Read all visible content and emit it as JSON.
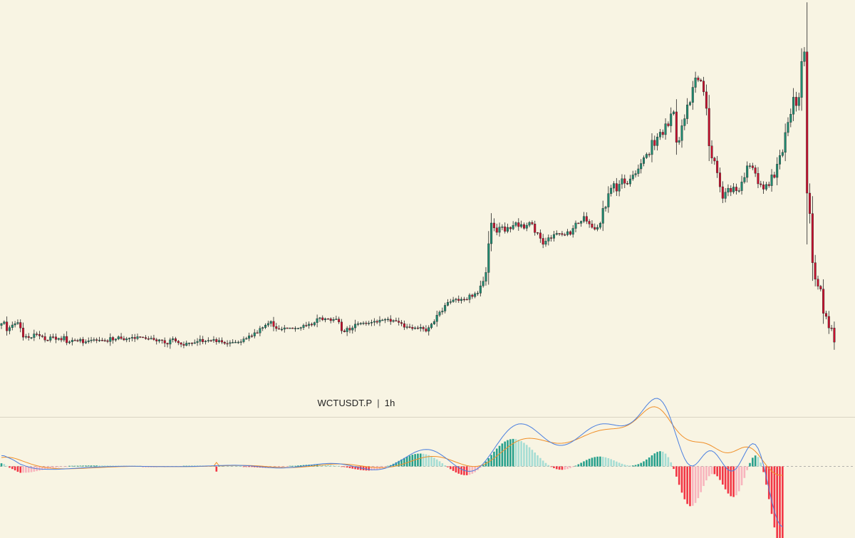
{
  "symbol": "WCTUSDT.P",
  "separator": "|",
  "timeframe": "1h",
  "colors": {
    "background": "#f8f4e3",
    "up": "#1f8a70",
    "down": "#c8102e",
    "wick": "#222222",
    "macd_line": "#4a7fe0",
    "signal_line": "#f0902a",
    "hist_up_strong": "#27a08c",
    "hist_up_weak": "#a6ddd4",
    "hist_down_strong": "#f23645",
    "hist_down_weak": "#f8b4bd",
    "divider": "#d9d4c3",
    "zero_line": "#9a9a9a"
  },
  "chart_data": {
    "type": "candlestick",
    "timeframe": "1h",
    "grid": false,
    "closes": [
      0.4016,
      0.4034,
      0.3938,
      0.3972,
      0.4001,
      0.4015,
      0.4028,
      0.3968,
      0.3869,
      0.3877,
      0.3864,
      0.3865,
      0.3904,
      0.3899,
      0.3883,
      0.3875,
      0.3837,
      0.3835,
      0.3873,
      0.3872,
      0.3844,
      0.3856,
      0.3838,
      0.3877,
      0.3808,
      0.3818,
      0.3836,
      0.3834,
      0.3827,
      0.3846,
      0.3806,
      0.3819,
      0.383,
      0.3838,
      0.3842,
      0.3832,
      0.3837,
      0.3834,
      0.3831,
      0.3821,
      0.3866,
      0.3837,
      0.3848,
      0.3873,
      0.3854,
      0.3839,
      0.3851,
      0.3858,
      0.3867,
      0.3853,
      0.3874,
      0.387,
      0.3865,
      0.3853,
      0.3852,
      0.3858,
      0.3842,
      0.3826,
      0.384,
      0.3833,
      0.3804,
      0.3793,
      0.384,
      0.3853,
      0.3825,
      0.3808,
      0.3792,
      0.3779,
      0.3805,
      0.3806,
      0.38,
      0.3809,
      0.3823,
      0.3846,
      0.3818,
      0.3826,
      0.3834,
      0.3832,
      0.3844,
      0.3818,
      0.3834,
      0.3815,
      0.3801,
      0.38,
      0.381,
      0.3813,
      0.3815,
      0.3815,
      0.3819,
      0.3849,
      0.3855,
      0.3884,
      0.3881,
      0.3917,
      0.3915,
      0.3964,
      0.3973,
      0.3999,
      0.4017,
      0.404,
      0.3984,
      0.3962,
      0.3955,
      0.3955,
      0.397,
      0.3965,
      0.3969,
      0.3962,
      0.3965,
      0.3965,
      0.3972,
      0.3998,
      0.3994,
      0.401,
      0.4001,
      0.4026,
      0.407,
      0.4079,
      0.4056,
      0.4069,
      0.4068,
      0.4048,
      0.4061,
      0.4065,
      0.4033,
      0.3938,
      0.3927,
      0.3966,
      0.3946,
      0.397,
      0.401,
      0.4014,
      0.4018,
      0.4023,
      0.4019,
      0.4022,
      0.403,
      0.4041,
      0.4031,
      0.4054,
      0.4055,
      0.4062,
      0.4064,
      0.4039,
      0.405,
      0.4043,
      0.4028,
      0.4016,
      0.3976,
      0.3981,
      0.3976,
      0.3961,
      0.397,
      0.3963,
      0.3976,
      0.3959,
      0.3933,
      0.3973,
      0.4011,
      0.4038,
      0.4107,
      0.4141,
      0.4152,
      0.4214,
      0.4247,
      0.4253,
      0.4272,
      0.4281,
      0.4265,
      0.428,
      0.4279,
      0.4277,
      0.4326,
      0.4309,
      0.4341,
      0.4346,
      0.4425,
      0.4475,
      0.457,
      0.4882,
      0.5106,
      0.5053,
      0.5005,
      0.5061,
      0.5065,
      0.5016,
      0.5059,
      0.5043,
      0.508,
      0.511,
      0.5067,
      0.509,
      0.5049,
      0.5082,
      0.5112,
      0.5096,
      0.5003,
      0.4999,
      0.494,
      0.4875,
      0.491,
      0.4947,
      0.4941,
      0.4982,
      0.4994,
      0.4993,
      0.4981,
      0.4979,
      0.5013,
      0.4983,
      0.5048,
      0.5106,
      0.5103,
      0.5125,
      0.5177,
      0.5125,
      0.5096,
      0.5059,
      0.5039,
      0.5059,
      0.5103,
      0.5265,
      0.5279,
      0.5425,
      0.5484,
      0.5534,
      0.5452,
      0.5527,
      0.5586,
      0.5536,
      0.553,
      0.5584,
      0.5627,
      0.5642,
      0.5693,
      0.5751,
      0.5814,
      0.5851,
      0.5848,
      0.6003,
      0.5945,
      0.6039,
      0.6091,
      0.6064,
      0.6182,
      0.616,
      0.6289,
      0.6311,
      0.5981,
      0.6,
      0.6161,
      0.6237,
      0.6387,
      0.6413,
      0.6577,
      0.668,
      0.6655,
      0.6644,
      0.6528,
      0.6349,
      0.5942,
      0.581,
      0.5778,
      0.565,
      0.5499,
      0.5373,
      0.544,
      0.5483,
      0.5443,
      0.5496,
      0.5455,
      0.5457,
      0.5551,
      0.56,
      0.5726,
      0.5726,
      0.5705,
      0.5645,
      0.5531,
      0.5521,
      0.5473,
      0.5524,
      0.5511,
      0.5628,
      0.56,
      0.5744,
      0.5838,
      0.5872,
      0.6087,
      0.6198,
      0.6286,
      0.647,
      0.6379,
      0.6468,
      0.6857,
      0.6961,
      0.543,
      0.5208,
      0.4676,
      0.4497,
      0.4421,
      0.4389,
      0.4127,
      0.4094,
      0.3969,
      0.3968,
      0.3815
    ],
    "macd": [
      0.01207,
      0.01195,
      0.01057,
      0.00917,
      0.00781,
      0.00617,
      0.00424,
      0.00241,
      0.00136,
      0.00026,
      -0.00069,
      -0.00148,
      -0.00208,
      -0.00253,
      -0.00287,
      -0.0031,
      -0.0032,
      -0.00326,
      -0.00331,
      -0.00332,
      -0.00327,
      -0.00319,
      -0.00305,
      -0.0029,
      -0.00271,
      -0.00253,
      -0.00235,
      -0.00217,
      -0.00199,
      -0.00181,
      -0.00163,
      -0.00145,
      -0.00127,
      -0.00111,
      -0.00095,
      -0.00079,
      -0.00065,
      -0.00051,
      -0.00038,
      -0.00026,
      -0.00015,
      -6e-05,
      2e-05,
      8e-05,
      0.00012,
      0.00015,
      0.00016,
      0.00016,
      0.00015,
      0.00013,
      0.0001,
      7e-05,
      3e-05,
      -1e-05,
      -5e-05,
      -9e-05,
      -0.00013,
      -0.00017,
      -0.00019,
      -0.00021,
      -0.00023,
      -0.00025,
      -0.00026,
      -0.00026,
      -0.00025,
      -0.00024,
      -0.00022,
      -0.0002,
      -0.00016,
      -0.00012,
      -7e-05,
      -1e-05,
      7e-05,
      0.00016,
      0.00026,
      0.00037,
      0.00048,
      0.0006,
      0.00073,
      0.00085,
      0.00096,
      0.00106,
      0.00114,
      0.0012,
      0.00124,
      0.00126,
      0.00125,
      0.00121,
      0.00114,
      0.00104,
      0.00089,
      0.00071,
      0.00048,
      0.00021,
      -8e-05,
      -0.00039,
      -0.0007,
      -0.00099,
      -0.00125,
      -0.00146,
      -0.00163,
      -0.00173,
      -0.00177,
      -0.00175,
      -0.00166,
      -0.00151,
      -0.00131,
      -0.00106,
      -0.00077,
      -0.00044,
      -8e-05,
      0.0003,
      0.0007,
      0.00111,
      0.00153,
      0.00193,
      0.0023,
      0.00264,
      0.00293,
      0.00315,
      0.0033,
      0.00336,
      0.00332,
      0.00318,
      0.00293,
      0.00258,
      0.00212,
      0.00157,
      0.00094,
      0.00026,
      -0.00046,
      -0.00118,
      -0.00187,
      -0.00251,
      -0.00306,
      -0.00349,
      -0.00377,
      -0.00387,
      -0.00377,
      -0.00345,
      -0.00289,
      -0.00209,
      -0.00105,
      0.00022,
      0.0017,
      0.00336,
      0.00516,
      0.00706,
      0.00899,
      0.01091,
      0.01276,
      0.01447,
      0.01598,
      0.01724,
      0.0182,
      0.01881,
      0.01904,
      0.01886,
      0.01828,
      0.01729,
      0.01592,
      0.0142,
      0.0122,
      0.00997,
      0.00761,
      0.00519,
      0.00281,
      0.00057,
      -0.00145,
      -0.00316,
      -0.00447,
      -0.0053,
      -0.00556,
      -0.0052,
      -0.00418,
      -0.00245,
      0.0,
      0.00307,
      0.00668,
      0.01071,
      0.01504,
      0.01955,
      0.02409,
      0.02852,
      0.03272,
      0.03657,
      0.03996,
      0.04282,
      0.04506,
      0.04665,
      0.04757,
      0.04783,
      0.04745,
      0.04648,
      0.045,
      0.04308,
      0.04084,
      0.03837,
      0.03579,
      0.03321,
      0.03075,
      0.02852,
      0.02662,
      0.02513,
      0.0241,
      0.02358,
      0.02358,
      0.02409,
      0.02509,
      0.02652,
      0.02833,
      0.03042,
      0.03271,
      0.03511,
      0.03751,
      0.03982,
      0.04195,
      0.04382,
      0.04537,
      0.04656,
      0.04736,
      0.04776,
      0.04781,
      0.04756,
      0.0471,
      0.04654,
      0.046,
      0.04562,
      0.04554,
      0.04588,
      0.04676,
      0.04826,
      0.05042,
      0.05323,
      0.05659,
      0.06037,
      0.06433,
      0.06821,
      0.0717,
      0.07444,
      0.0761,
      0.07637,
      0.07501,
      0.07187,
      0.06692,
      0.06029,
      0.05225,
      0.04323,
      0.03376,
      0.02447,
      0.01598,
      0.00892,
      0.0038,
      0.00096,
      0.00043,
      0.00195,
      0.005,
      0.00886,
      0.01272,
      0.0158,
      0.01748,
      0.01741,
      0.01557,
      0.01225,
      0.00798,
      0.00341,
      -0.00073,
      -0.00381,
      -0.00528,
      -0.0048,
      -0.00229,
      0.00198,
      0.00751,
      0.01355,
      0.01922,
      0.02354,
      0.02555,
      0.02453,
      0.02008,
      0.01221,
      0.00141,
      -0.01144,
      -0.02524,
      -0.03868,
      -0.05053,
      -0.05977,
      -0.06568,
      -0.06792,
      -0.06655,
      -0.06194,
      -0.05468
    ],
    "signal": [
      0.00989,
      0.0103,
      0.01036,
      0.01012,
      0.00966,
      0.00896,
      0.00802,
      0.0069,
      0.00579,
      0.00467,
      0.0036,
      0.00258,
      0.00164,
      0.0008,
      7e-05,
      -0.00057,
      -0.0011,
      -0.00153,
      -0.00189,
      -0.00218,
      -0.00239,
      -0.00255,
      -0.00265,
      -0.0027,
      -0.0027,
      -0.00267,
      -0.00261,
      -0.00252,
      -0.00242,
      -0.0023,
      -0.00217,
      -0.00202,
      -0.00187,
      -0.00172,
      -0.00156,
      -0.00141,
      -0.00126,
      -0.00111,
      -0.00096,
      -0.00082,
      -0.00069,
      -0.00056,
      -0.00045,
      -0.00034,
      -0.00025,
      -0.00016,
      -9e-05,
      -4e-05,
      0.0,
      3e-05,
      4e-05,
      5e-05,
      4e-05,
      3e-05,
      1e-05,
      -1e-05,
      -4e-05,
      -7e-05,
      -9e-05,
      -0.00012,
      -0.00014,
      -0.00016,
      -0.00018,
      -0.0002,
      -0.00021,
      -0.00021,
      -0.00021,
      -0.00021,
      -0.0002,
      -0.00018,
      -0.00016,
      -0.00013,
      -9e-05,
      -4e-05,
      2e-05,
      9e-05,
      0.00017,
      0.00025,
      0.00035,
      0.0045,
      0.00055,
      0.00065,
      0.00074,
      0.00083,
      0.00091,
      0.00098,
      0.00103,
      0.00107,
      0.00108,
      0.00108,
      0.00104,
      0.00097,
      0.00087,
      0.00074,
      0.00057,
      0.00038,
      0.00016,
      -7e-05,
      -0.00031,
      -0.00054,
      -0.00076,
      -0.00095,
      -0.00111,
      -0.00124,
      -0.00132,
      -0.00136,
      -0.00135,
      -0.00129,
      -0.00119,
      -0.00104,
      -0.00085,
      -0.00062,
      -0.00035,
      -6e-05,
      0.00026,
      0.00059,
      0.00093,
      0.00128,
      0.00161,
      0.00192,
      0.0022,
      0.00243,
      0.00261,
      0.0027,
      0.00273,
      0.0027,
      0.00259,
      0.00238,
      0.00214,
      0.00183,
      0.00147,
      0.00107,
      0.00066,
      0.00023,
      -0.00018,
      -0.00058,
      -0.00093,
      -0.00121,
      -0.00141,
      -0.00151,
      -0.00149,
      -0.00135,
      -0.00108,
      -0.00067,
      -0.00013,
      0.00053,
      0.0013,
      0.00218,
      0.00314,
      0.00416,
      0.00522,
      0.00628,
      0.00733,
      0.00831,
      0.0092,
      0.00996,
      0.01056,
      0.01099,
      0.01122,
      0.01124,
      0.01104,
      0.01062,
      0.00999,
      0.00919,
      0.00822,
      0.00714,
      0.00599,
      0.00482,
      0.00368,
      0.00262,
      0.00168,
      0.0009,
      0.00031,
      -4e-05,
      -0.00011,
      0.00017,
      0.00083,
      0.00187,
      0.00327,
      0.00499,
      0.00698,
      0.0092,
      0.0116,
      0.0141,
      0.01664,
      0.01914,
      0.02153,
      0.02376,
      0.02577,
      0.02752,
      0.02898,
      0.03011,
      0.03092,
      0.0314,
      0.03157,
      0.03146,
      0.03112,
      0.03059,
      0.02991,
      0.02916,
      0.02837,
      0.0276,
      0.02692,
      0.02638,
      0.02602,
      0.02588,
      0.02597,
      0.02632,
      0.02692,
      0.02774,
      0.02876,
      0.02993,
      0.03122,
      0.03258,
      0.03396,
      0.03531,
      0.03659,
      0.03777,
      0.03882,
      0.03972,
      0.04046,
      0.04104,
      0.04148,
      0.04181,
      0.04207,
      0.04231,
      0.04261,
      0.04305,
      0.0437,
      0.04465,
      0.04596,
      0.04766,
      0.04977,
      0.05224,
      0.055,
      0.0579,
      0.06078,
      0.06338,
      0.06544,
      0.0667,
      0.06698,
      0.0662,
      0.06436,
      0.06156,
      0.05797,
      0.05382,
      0.0494,
      0.04501,
      0.04095,
      0.03739,
      0.03441,
      0.03201,
      0.03017,
      0.02888,
      0.02806,
      0.02758,
      0.02728,
      0.02697,
      0.02645,
      0.02559,
      0.02437,
      0.02282,
      0.02103,
      0.01919,
      0.0175,
      0.01617,
      0.01538,
      0.01522,
      0.01568,
      0.01666,
      0.01799,
      0.01945,
      0.02077,
      0.02167,
      0.02187,
      0.02117,
      0.01949,
      0.01688,
      0.01346,
      0.00952,
      0.0054,
      0.00139,
      -0.00225,
      -0.00534,
      -0.0077,
      -0.00925,
      -0.01,
      -0.01001
    ]
  }
}
